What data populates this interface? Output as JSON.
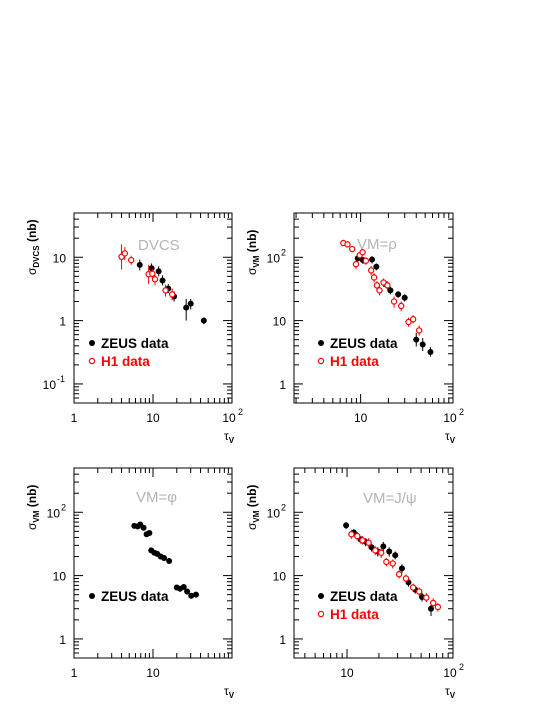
{
  "colors": {
    "zeus": "#000000",
    "h1": "#ff0000",
    "frame": "#000000",
    "label": "#b4b4b4"
  },
  "chart_data": [
    {
      "type": "scatter",
      "title": "DVCS",
      "ylabel_main": "σ",
      "ylabel_sub": "DVCS",
      "ylabel_unit": " (nb)",
      "xlabel_main": "τ",
      "xlabel_sub": "V",
      "x_scale": "log",
      "y_scale": "log",
      "xlim": [
        1,
        100
      ],
      "ylim": [
        0.05,
        50
      ],
      "x_ticks": [
        {
          "v": 1,
          "b": "1",
          "e": ""
        },
        {
          "v": 10,
          "b": "10",
          "e": ""
        },
        {
          "v": 100,
          "b": "10",
          "e": "2"
        }
      ],
      "y_ticks": [
        {
          "v": 0.1,
          "b": "10",
          "e": "-1"
        },
        {
          "v": 1,
          "b": "1",
          "e": ""
        },
        {
          "v": 10,
          "b": "10",
          "e": ""
        }
      ],
      "legend": [
        "ZEUS data",
        "H1 data"
      ],
      "series": [
        {
          "name": "ZEUS data",
          "marker": "filled",
          "points": [
            {
              "x": 6.8,
              "y": 7.6,
              "lo": 6.2,
              "hi": 9.2
            },
            {
              "x": 9.6,
              "y": 6.7,
              "lo": 5.6,
              "hi": 8.0
            },
            {
              "x": 11.8,
              "y": 6.0,
              "lo": 5.0,
              "hi": 7.2
            },
            {
              "x": 13.2,
              "y": 4.3,
              "lo": 3.6,
              "hi": 5.2
            },
            {
              "x": 15.6,
              "y": 3.2,
              "lo": 2.7,
              "hi": 3.8
            },
            {
              "x": 18.5,
              "y": 2.4,
              "lo": 2.0,
              "hi": 2.9
            },
            {
              "x": 26.3,
              "y": 1.6,
              "lo": 1.0,
              "hi": 2.2
            },
            {
              "x": 30.0,
              "y": 1.85,
              "lo": 1.5,
              "hi": 2.2
            },
            {
              "x": 44.0,
              "y": 1.0,
              "lo": 0.88,
              "hi": 1.12
            }
          ]
        },
        {
          "name": "H1 data",
          "marker": "open",
          "points": [
            {
              "x": 4.0,
              "y": 10.2,
              "lo": 6.4,
              "hi": 16.0
            },
            {
              "x": 4.4,
              "y": 11.5,
              "lo": 9.0,
              "hi": 14.5
            },
            {
              "x": 5.3,
              "y": 9.0,
              "lo": 7.6,
              "hi": 10.6
            },
            {
              "x": 8.8,
              "y": 5.4,
              "lo": 3.8,
              "hi": 7.6
            },
            {
              "x": 9.8,
              "y": 5.5,
              "lo": 4.6,
              "hi": 6.6
            },
            {
              "x": 10.6,
              "y": 4.5,
              "lo": 3.6,
              "hi": 5.6
            },
            {
              "x": 14.4,
              "y": 3.0,
              "lo": 2.4,
              "hi": 3.7
            },
            {
              "x": 17.5,
              "y": 2.6,
              "lo": 2.1,
              "hi": 3.2
            }
          ]
        }
      ]
    },
    {
      "type": "scatter",
      "title": "VM=ρ",
      "ylabel_main": "σ",
      "ylabel_sub": "VM",
      "ylabel_unit": " (nb)",
      "xlabel_main": "τ",
      "xlabel_sub": "V",
      "x_scale": "log",
      "y_scale": "log",
      "xlim": [
        1.9,
        100
      ],
      "ylim": [
        0.5,
        500
      ],
      "x_ticks": [
        {
          "v": 10,
          "b": "10",
          "e": ""
        },
        {
          "v": 100,
          "b": "10",
          "e": "2"
        }
      ],
      "y_ticks": [
        {
          "v": 1,
          "b": "1",
          "e": ""
        },
        {
          "v": 10,
          "b": "10",
          "e": ""
        },
        {
          "v": 100,
          "b": "10",
          "e": "2"
        }
      ],
      "legend": [
        "ZEUS data",
        "H1 data"
      ],
      "series": [
        {
          "name": "ZEUS data",
          "marker": "filled",
          "points": [
            {
              "x": 9.3,
              "y": 96,
              "lo": 80,
              "hi": 110
            },
            {
              "x": 10.6,
              "y": 90,
              "lo": 78,
              "hi": 100
            },
            {
              "x": 13.3,
              "y": 92,
              "lo": 80,
              "hi": 104
            },
            {
              "x": 14.8,
              "y": 71,
              "lo": 62,
              "hi": 80
            },
            {
              "x": 18.0,
              "y": 39,
              "lo": 34,
              "hi": 44
            },
            {
              "x": 21.0,
              "y": 30,
              "lo": 26,
              "hi": 34
            },
            {
              "x": 25.5,
              "y": 26,
              "lo": 23,
              "hi": 29
            },
            {
              "x": 30.0,
              "y": 23,
              "lo": 20,
              "hi": 26
            },
            {
              "x": 40.0,
              "y": 5.0,
              "lo": 3.9,
              "hi": 6.4
            },
            {
              "x": 47.0,
              "y": 4.2,
              "lo": 3.3,
              "hi": 5.3
            },
            {
              "x": 57.0,
              "y": 3.2,
              "lo": 2.7,
              "hi": 3.8
            }
          ]
        },
        {
          "name": "H1 data",
          "marker": "open",
          "points": [
            {
              "x": 6.5,
              "y": 168,
              "lo": 155,
              "hi": 180
            },
            {
              "x": 7.2,
              "y": 160,
              "lo": 148,
              "hi": 172
            },
            {
              "x": 8.1,
              "y": 135,
              "lo": 120,
              "hi": 150
            },
            {
              "x": 8.9,
              "y": 78,
              "lo": 65,
              "hi": 92
            },
            {
              "x": 9.8,
              "y": 108,
              "lo": 95,
              "hi": 122
            },
            {
              "x": 10.5,
              "y": 120,
              "lo": 105,
              "hi": 135
            },
            {
              "x": 11.4,
              "y": 88,
              "lo": 76,
              "hi": 100
            },
            {
              "x": 13.0,
              "y": 62,
              "lo": 52,
              "hi": 72
            },
            {
              "x": 14.0,
              "y": 48,
              "lo": 40,
              "hi": 56
            },
            {
              "x": 15.0,
              "y": 36,
              "lo": 30,
              "hi": 42
            },
            {
              "x": 16.0,
              "y": 30,
              "lo": 25,
              "hi": 35
            },
            {
              "x": 17.7,
              "y": 40,
              "lo": 34,
              "hi": 46
            },
            {
              "x": 19.5,
              "y": 36,
              "lo": 30,
              "hi": 42
            },
            {
              "x": 23.0,
              "y": 20,
              "lo": 16,
              "hi": 24
            },
            {
              "x": 27.5,
              "y": 17,
              "lo": 14,
              "hi": 20
            },
            {
              "x": 33.0,
              "y": 9.5,
              "lo": 8.0,
              "hi": 11.2
            },
            {
              "x": 37.0,
              "y": 10.5,
              "lo": 9.0,
              "hi": 12.2
            },
            {
              "x": 43.0,
              "y": 7.0,
              "lo": 5.8,
              "hi": 8.4
            }
          ]
        }
      ]
    },
    {
      "type": "scatter",
      "title": "VM=φ",
      "ylabel_main": "σ",
      "ylabel_sub": "VM",
      "ylabel_unit": " (nb)",
      "xlabel_main": "τ",
      "xlabel_sub": "V",
      "x_scale": "log",
      "y_scale": "log",
      "xlim": [
        1,
        100
      ],
      "ylim": [
        0.5,
        500
      ],
      "x_ticks": [
        {
          "v": 1,
          "b": "1",
          "e": ""
        },
        {
          "v": 10,
          "b": "10",
          "e": ""
        }
      ],
      "y_ticks": [
        {
          "v": 1,
          "b": "1",
          "e": ""
        },
        {
          "v": 10,
          "b": "10",
          "e": ""
        },
        {
          "v": 100,
          "b": "10",
          "e": "2"
        }
      ],
      "legend": [
        "ZEUS data"
      ],
      "series": [
        {
          "name": "ZEUS data",
          "marker": "filled",
          "points": [
            {
              "x": 5.8,
              "y": 61,
              "lo": 57,
              "hi": 65
            },
            {
              "x": 6.4,
              "y": 60,
              "lo": 56,
              "hi": 64
            },
            {
              "x": 6.9,
              "y": 64,
              "lo": 60,
              "hi": 68
            },
            {
              "x": 7.6,
              "y": 57,
              "lo": 53,
              "hi": 61
            },
            {
              "x": 8.3,
              "y": 45,
              "lo": 42,
              "hi": 48
            },
            {
              "x": 9.0,
              "y": 47,
              "lo": 44,
              "hi": 50
            },
            {
              "x": 9.5,
              "y": 25,
              "lo": 23,
              "hi": 27
            },
            {
              "x": 10.4,
              "y": 23,
              "lo": 21,
              "hi": 25
            },
            {
              "x": 11.3,
              "y": 22,
              "lo": 20.5,
              "hi": 23.5
            },
            {
              "x": 12.5,
              "y": 20,
              "lo": 18.5,
              "hi": 21.5
            },
            {
              "x": 13.8,
              "y": 19,
              "lo": 17.5,
              "hi": 20.5
            },
            {
              "x": 16.0,
              "y": 17,
              "lo": 15.7,
              "hi": 18.3
            },
            {
              "x": 20.0,
              "y": 6.5,
              "lo": 5.9,
              "hi": 7.1
            },
            {
              "x": 22.0,
              "y": 6.2,
              "lo": 5.6,
              "hi": 6.8
            },
            {
              "x": 24.5,
              "y": 6.6,
              "lo": 6.0,
              "hi": 7.2
            },
            {
              "x": 27.0,
              "y": 5.6,
              "lo": 5.0,
              "hi": 6.2
            },
            {
              "x": 30.5,
              "y": 4.8,
              "lo": 4.3,
              "hi": 5.3
            },
            {
              "x": 35.0,
              "y": 5.0,
              "lo": 4.5,
              "hi": 5.5
            }
          ]
        }
      ]
    },
    {
      "type": "scatter",
      "title": "VM=J/ψ",
      "ylabel_main": "σ",
      "ylabel_sub": "VM",
      "ylabel_unit": " (nb)",
      "xlabel_main": "τ",
      "xlabel_sub": "V",
      "x_scale": "log",
      "y_scale": "log",
      "xlim": [
        3.16,
        100
      ],
      "ylim": [
        0.5,
        500
      ],
      "x_ticks": [
        {
          "v": 10,
          "b": "10",
          "e": ""
        },
        {
          "v": 100,
          "b": "10",
          "e": "2"
        }
      ],
      "y_ticks": [
        {
          "v": 1,
          "b": "1",
          "e": ""
        },
        {
          "v": 10,
          "b": "10",
          "e": ""
        },
        {
          "v": 100,
          "b": "10",
          "e": "2"
        }
      ],
      "legend": [
        "ZEUS data",
        "H1 data"
      ],
      "series": [
        {
          "name": "ZEUS data",
          "marker": "filled",
          "points": [
            {
              "x": 9.8,
              "y": 62,
              "lo": 54,
              "hi": 70
            },
            {
              "x": 11.6,
              "y": 48,
              "lo": 42,
              "hi": 54
            },
            {
              "x": 13.5,
              "y": 37,
              "lo": 32,
              "hi": 42
            },
            {
              "x": 15.0,
              "y": 34,
              "lo": 29,
              "hi": 39
            },
            {
              "x": 17.0,
              "y": 28,
              "lo": 24,
              "hi": 32
            },
            {
              "x": 19.5,
              "y": 24,
              "lo": 20,
              "hi": 28
            },
            {
              "x": 22.0,
              "y": 29,
              "lo": 24,
              "hi": 34
            },
            {
              "x": 25.0,
              "y": 24,
              "lo": 20,
              "hi": 28
            },
            {
              "x": 28.5,
              "y": 21,
              "lo": 18,
              "hi": 24
            },
            {
              "x": 33.0,
              "y": 13,
              "lo": 11,
              "hi": 15
            },
            {
              "x": 38.0,
              "y": 7.8,
              "lo": 6.7,
              "hi": 9.0
            },
            {
              "x": 44.0,
              "y": 6.0,
              "lo": 5.2,
              "hi": 6.9
            },
            {
              "x": 51.0,
              "y": 4.6,
              "lo": 3.9,
              "hi": 5.4
            },
            {
              "x": 62.0,
              "y": 3.0,
              "lo": 2.3,
              "hi": 3.9
            }
          ]
        },
        {
          "name": "H1 data",
          "marker": "open",
          "points": [
            {
              "x": 11.0,
              "y": 45,
              "lo": 38,
              "hi": 53
            },
            {
              "x": 12.5,
              "y": 42,
              "lo": 36,
              "hi": 49
            },
            {
              "x": 14.0,
              "y": 36,
              "lo": 31,
              "hi": 42
            },
            {
              "x": 16.0,
              "y": 33,
              "lo": 28,
              "hi": 39
            },
            {
              "x": 18.5,
              "y": 25,
              "lo": 21,
              "hi": 29
            },
            {
              "x": 21.0,
              "y": 23,
              "lo": 19,
              "hi": 27
            },
            {
              "x": 23.5,
              "y": 16.5,
              "lo": 14,
              "hi": 19
            },
            {
              "x": 27.0,
              "y": 15.5,
              "lo": 13,
              "hi": 18
            },
            {
              "x": 31.0,
              "y": 10.5,
              "lo": 9.0,
              "hi": 12.2
            },
            {
              "x": 36.0,
              "y": 9.0,
              "lo": 7.7,
              "hi": 10.4
            },
            {
              "x": 42.0,
              "y": 6.5,
              "lo": 5.6,
              "hi": 7.5
            },
            {
              "x": 48.0,
              "y": 5.6,
              "lo": 4.8,
              "hi": 6.5
            },
            {
              "x": 56.0,
              "y": 4.5,
              "lo": 3.8,
              "hi": 5.3
            },
            {
              "x": 65.0,
              "y": 3.7,
              "lo": 3.1,
              "hi": 4.4
            },
            {
              "x": 72.0,
              "y": 3.2,
              "lo": 2.7,
              "hi": 3.7
            }
          ]
        }
      ]
    }
  ]
}
